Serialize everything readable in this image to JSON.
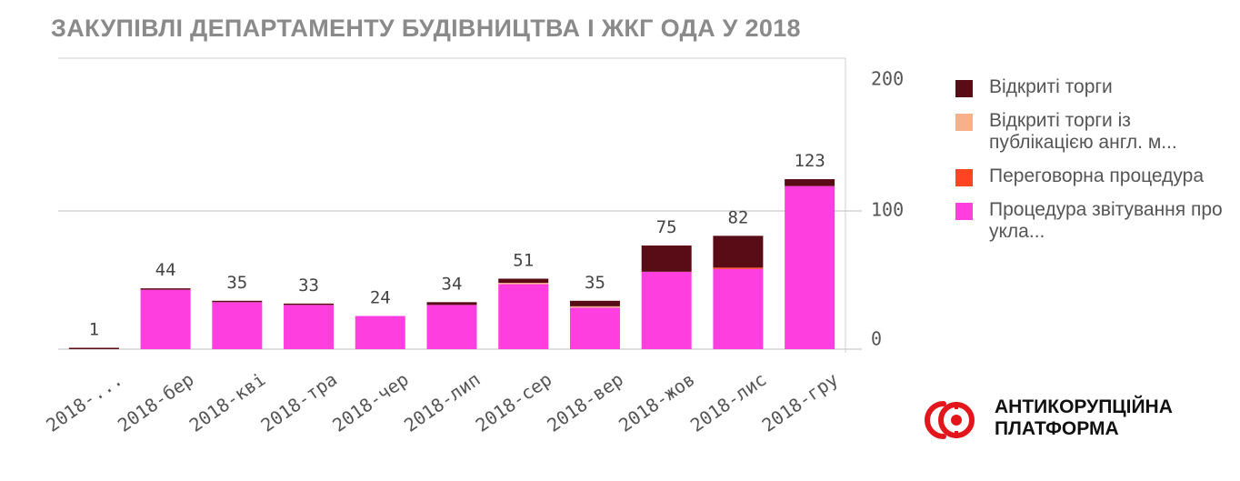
{
  "title": "ЗАКУПІВЛІ ДЕПАРТАМЕНТУ БУДІВНИЦТВА І ЖКГ ОДА У 2018",
  "brand": {
    "line1": "АНТИКОРУПЦІЙНА",
    "line2": "ПЛАТФОРМА",
    "logo_icon": "anticorruption-platform-logo-icon"
  },
  "legend": [
    {
      "label": "Відкриті торги",
      "color": "#5a0c16"
    },
    {
      "label": "Відкриті торги із публікацією англ. м...",
      "color": "#f7b08a"
    },
    {
      "label": "Переговорна процедура",
      "color": "#ff4422"
    },
    {
      "label": "Процедура звітування про укла...",
      "color": "#ff3ee0"
    }
  ],
  "chart_data": {
    "type": "bar",
    "stacked": true,
    "categories": [
      "2018-...",
      "2018-бер",
      "2018-кві",
      "2018-тра",
      "2018-чер",
      "2018-лип",
      "2018-сер",
      "2018-вер",
      "2018-жов",
      "2018-лис",
      "2018-гру"
    ],
    "totals": [
      1,
      44,
      35,
      33,
      24,
      34,
      51,
      35,
      75,
      82,
      123
    ],
    "series": [
      {
        "name": "Процедура звітування про укла...",
        "color": "#ff3ee0",
        "values": [
          0,
          43,
          34,
          32,
          24,
          32,
          47,
          30,
          56,
          58,
          118
        ]
      },
      {
        "name": "Переговорна процедура",
        "color": "#ff4422",
        "values": [
          0,
          0,
          0,
          0,
          0,
          0,
          0,
          0,
          0,
          1,
          0
        ]
      },
      {
        "name": "Відкриті торги із публікацією англ. м...",
        "color": "#f7b08a",
        "values": [
          0,
          0,
          0,
          0,
          0,
          0,
          1,
          1,
          0,
          0,
          0
        ]
      },
      {
        "name": "Відкриті торги",
        "color": "#5a0c16",
        "values": [
          1,
          1,
          1,
          1,
          0,
          2,
          3,
          4,
          19,
          23,
          5
        ]
      }
    ],
    "y_ticks": [
      0,
      100,
      200
    ],
    "ylim": [
      0,
      200
    ],
    "y_axis_position": "right",
    "grid": true,
    "legend_position": "right"
  }
}
